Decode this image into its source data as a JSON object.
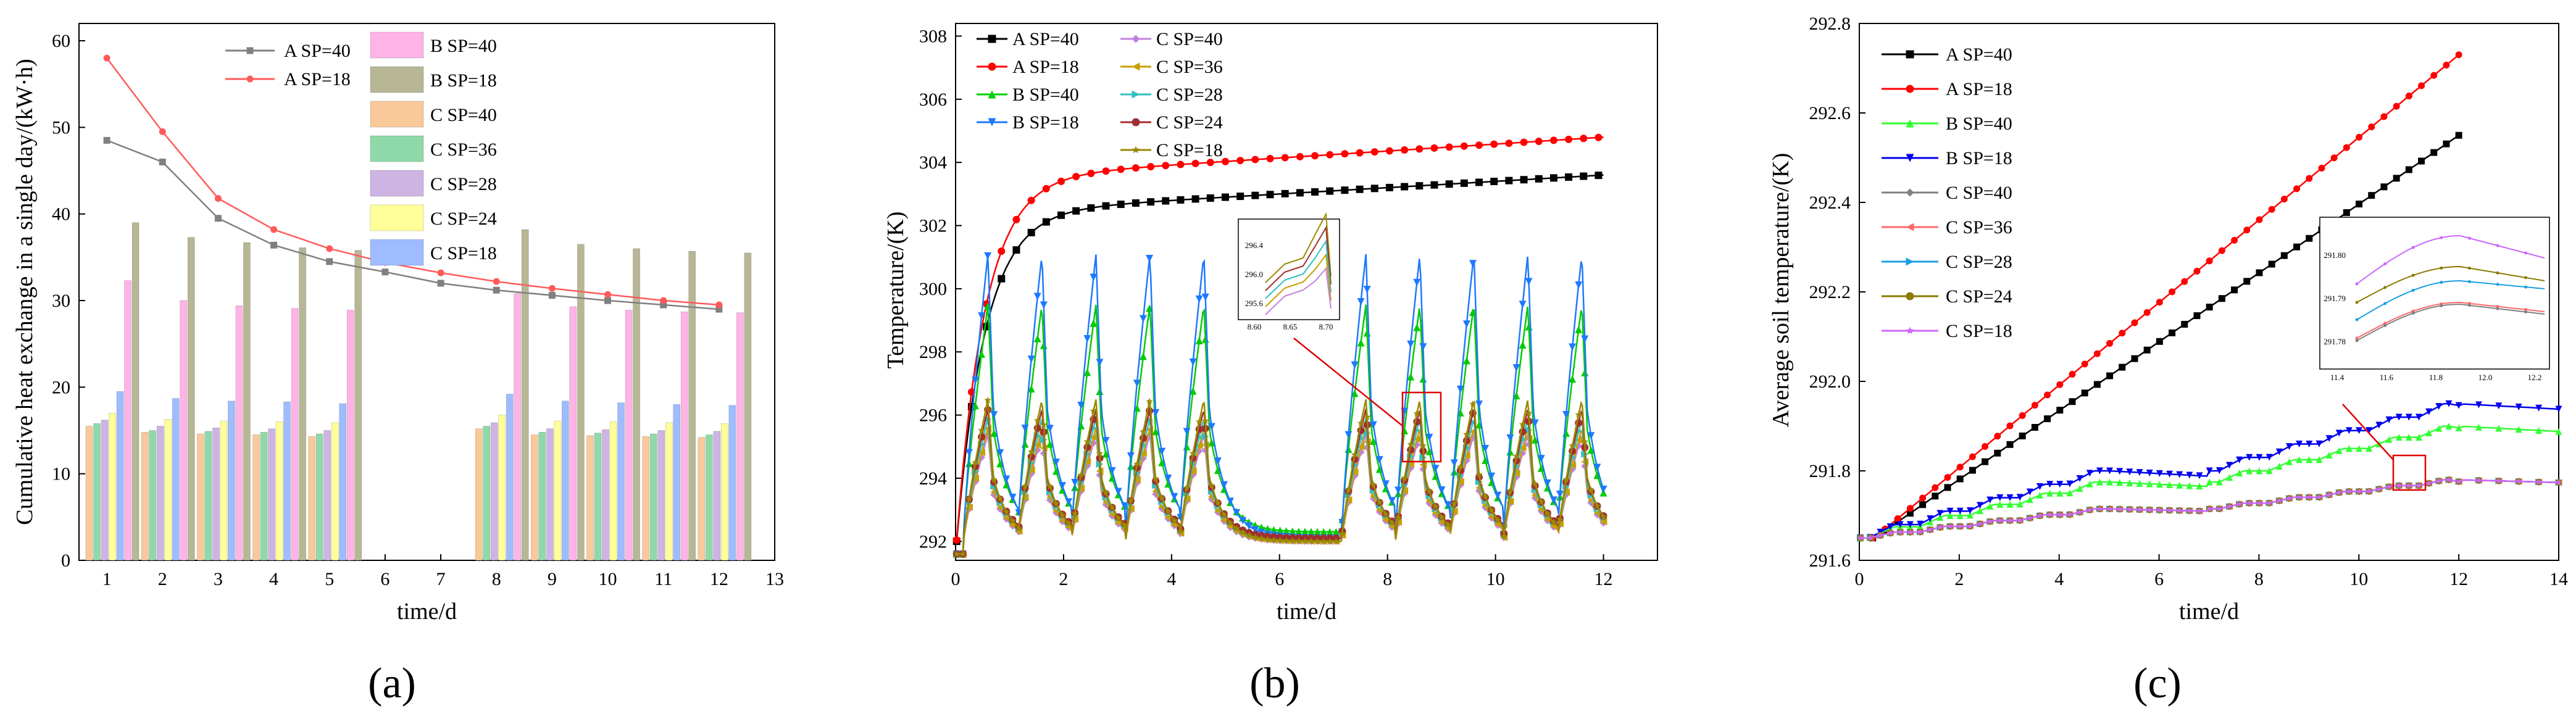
{
  "chart_data": [
    {
      "panel": "(a)",
      "type": "bar",
      "xlabel": "time/d",
      "ylabel": "Cumulative heat exchange in a single day/(kW·h)",
      "xlim": [
        0.5,
        13
      ],
      "ylim": [
        0,
        62
      ],
      "xticks": [
        1,
        2,
        3,
        4,
        5,
        6,
        7,
        8,
        9,
        10,
        11,
        12,
        13
      ],
      "yticks": [
        0,
        10,
        20,
        30,
        40,
        50,
        60
      ],
      "days": [
        1,
        2,
        3,
        4,
        5,
        8,
        9,
        10,
        11,
        12
      ],
      "bar_series": [
        {
          "name": "C SP=40",
          "color": "#f9c99a",
          "values": [
            15.5,
            14.8,
            14.6,
            14.5,
            14.3,
            15.2,
            14.5,
            14.4,
            14.3,
            14.2
          ]
        },
        {
          "name": "C SP=36",
          "color": "#8fd9a8",
          "values": [
            15.8,
            15.0,
            14.9,
            14.8,
            14.6,
            15.5,
            14.8,
            14.7,
            14.6,
            14.5
          ]
        },
        {
          "name": "C SP=28",
          "color": "#cdb4e3",
          "values": [
            16.2,
            15.5,
            15.3,
            15.2,
            15.0,
            15.9,
            15.2,
            15.1,
            15.0,
            14.9
          ]
        },
        {
          "name": "C SP=24",
          "color": "#ffff99",
          "values": [
            17.0,
            16.3,
            16.1,
            16.0,
            15.9,
            16.8,
            16.1,
            16.0,
            15.9,
            15.8
          ]
        },
        {
          "name": "C SP=18",
          "color": "#9ebcff",
          "values": [
            19.5,
            18.7,
            18.4,
            18.3,
            18.1,
            19.2,
            18.4,
            18.2,
            18.0,
            17.9
          ]
        },
        {
          "name": "B SP=40",
          "color": "#ffb3e6",
          "values": [
            32.3,
            30.0,
            29.4,
            29.1,
            28.9,
            30.8,
            29.3,
            28.9,
            28.7,
            28.6
          ]
        },
        {
          "name": "B SP=18",
          "color": "#b7b796",
          "values": [
            39.0,
            37.3,
            36.7,
            36.1,
            35.8,
            38.2,
            36.5,
            36.0,
            35.7,
            35.5
          ]
        }
      ],
      "line_series": [
        {
          "name": "A SP=40",
          "color": "#808080",
          "x": [
            1,
            2,
            3,
            4,
            5,
            6,
            7,
            8,
            9,
            10,
            11,
            12
          ],
          "values": [
            48.5,
            46.0,
            39.5,
            36.4,
            34.5,
            33.3,
            32.0,
            31.2,
            30.6,
            30.0,
            29.5,
            29.0
          ]
        },
        {
          "name": "A SP=18",
          "color": "#ff5a5a",
          "x": [
            1,
            2,
            3,
            4,
            5,
            6,
            7,
            8,
            9,
            10,
            11,
            12
          ],
          "values": [
            58.0,
            49.5,
            41.8,
            38.2,
            36.0,
            34.4,
            33.2,
            32.2,
            31.4,
            30.7,
            30.0,
            29.5
          ]
        }
      ],
      "legend": [
        "A SP=40",
        "A SP=18",
        "B SP=40",
        "B SP=18",
        "C SP=40",
        "C SP=36",
        "C SP=28",
        "C SP=24",
        "C SP=18"
      ]
    },
    {
      "panel": "(b)",
      "type": "line",
      "xlabel": "time/d",
      "ylabel": "Temperature/(K)",
      "xlim": [
        0,
        13
      ],
      "ylim": [
        291.4,
        308.4
      ],
      "xticks": [
        0,
        2,
        4,
        6,
        8,
        10,
        12
      ],
      "yticks": [
        292,
        294,
        296,
        298,
        300,
        302,
        304,
        306,
        308
      ],
      "series": [
        {
          "name": "A SP=40",
          "color": "#000000",
          "marker": "square",
          "start": 291.6,
          "end": 303.6
        },
        {
          "name": "A SP=18",
          "color": "#ff0000",
          "marker": "circle",
          "start": 291.6,
          "end": 304.8
        },
        {
          "name": "B SP=40",
          "color": "#00cc00",
          "marker": "triangle-up",
          "peak": 299.5,
          "base": 292.3
        },
        {
          "name": "B SP=18",
          "color": "#1e78ff",
          "marker": "triangle-down",
          "peak": 301.1,
          "base": 292.1
        },
        {
          "name": "C SP=40",
          "color": "#c080e0",
          "marker": "diamond",
          "peak": 295.4,
          "base": 292.0
        },
        {
          "name": "C SP=36",
          "color": "#c8a000",
          "marker": "triangle-left",
          "peak": 295.6,
          "base": 292.0
        },
        {
          "name": "C SP=28",
          "color": "#30c0c0",
          "marker": "triangle-right",
          "peak": 295.9,
          "base": 292.1
        },
        {
          "name": "C SP=24",
          "color": "#a03030",
          "marker": "hexagon",
          "peak": 296.2,
          "base": 292.1
        },
        {
          "name": "C SP=18",
          "color": "#9a8a00",
          "marker": "star",
          "peak": 296.5,
          "base": 292.0
        }
      ],
      "inset": {
        "xticks": [
          "8.60",
          "8.65",
          "8.70"
        ],
        "yticks": [
          "295.6",
          "296.0",
          "296.4"
        ]
      }
    },
    {
      "panel": "(c)",
      "type": "line",
      "xlabel": "time/d",
      "ylabel": "Average soil temperature/(K)",
      "xlim": [
        0,
        14
      ],
      "ylim": [
        291.6,
        292.8
      ],
      "xticks": [
        0,
        2,
        4,
        6,
        8,
        10,
        12,
        14
      ],
      "yticks": [
        "291.6",
        "291.8",
        "292.0",
        "292.2",
        "292.4",
        "292.6",
        "292.8"
      ],
      "series": [
        {
          "name": "A SP=40",
          "color": "#000000",
          "marker": "square",
          "start": 291.65,
          "end": 292.55
        },
        {
          "name": "A SP=18",
          "color": "#ff0000",
          "marker": "circle",
          "start": 291.65,
          "end": 292.73
        },
        {
          "name": "B SP=40",
          "color": "#33ff33",
          "marker": "triangle-up",
          "start": 291.65,
          "end": 291.9
        },
        {
          "name": "B SP=18",
          "color": "#0000ee",
          "marker": "triangle-down",
          "start": 291.65,
          "end": 291.95
        },
        {
          "name": "C SP=40",
          "color": "#808080",
          "marker": "diamond",
          "start": 291.65,
          "end": 291.78
        },
        {
          "name": "C SP=36",
          "color": "#ff6a6a",
          "marker": "triangle-left",
          "start": 291.65,
          "end": 291.78
        },
        {
          "name": "C SP=28",
          "color": "#1aa0e0",
          "marker": "triangle-right",
          "start": 291.65,
          "end": 291.78
        },
        {
          "name": "C SP=24",
          "color": "#8a7a00",
          "marker": "hexagon",
          "start": 291.65,
          "end": 291.78
        },
        {
          "name": "C SP=18",
          "color": "#cc66ff",
          "marker": "star",
          "start": 291.65,
          "end": 291.78
        }
      ],
      "inset": {
        "xticks": [
          "11.4",
          "11.6",
          "11.8",
          "12.0",
          "12.2"
        ],
        "yticks": [
          "291.78",
          "291.79",
          "291.80"
        ]
      }
    }
  ]
}
